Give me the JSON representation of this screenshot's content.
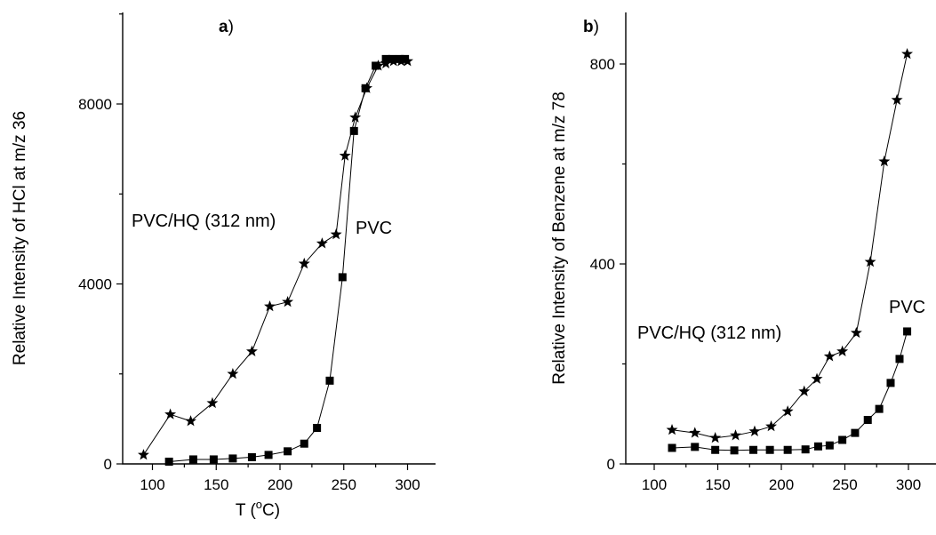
{
  "chart_data": [
    {
      "panel": "a",
      "type": "line",
      "title": "",
      "xlabel": "T (°C)",
      "ylabel": "Relative Intensity of HCl at m/z 36",
      "xlim": [
        70,
        320
      ],
      "ylim": [
        0,
        9900
      ],
      "xticks": [
        100,
        150,
        200,
        250,
        300
      ],
      "yticks": [
        0,
        4000,
        8000
      ],
      "series": [
        {
          "name": "PVC/HQ (312 nm)",
          "marker": "star",
          "x": [
            93,
            114,
            130,
            147,
            163,
            178,
            192,
            206,
            219,
            233,
            244,
            251,
            259,
            268,
            277,
            283,
            289,
            295,
            300
          ],
          "y": [
            200,
            1100,
            950,
            1350,
            2000,
            2500,
            3500,
            3600,
            4450,
            4900,
            5100,
            6850,
            7700,
            8350,
            8850,
            8900,
            8950,
            8950,
            8950
          ]
        },
        {
          "name": "PVC",
          "marker": "square",
          "x": [
            113,
            132,
            148,
            163,
            178,
            191,
            206,
            219,
            229,
            239,
            249,
            258,
            267,
            275,
            283,
            288,
            294,
            298
          ],
          "y": [
            50,
            100,
            100,
            120,
            150,
            200,
            280,
            450,
            800,
            1850,
            4150,
            7400,
            8350,
            8850,
            9000,
            9000,
            9000,
            9000
          ]
        }
      ]
    },
    {
      "panel": "b",
      "type": "line",
      "title": "",
      "xlabel": "",
      "ylabel": "Relative Intensity of Benzene at m/z 78",
      "xlim": [
        70,
        320
      ],
      "ylim": [
        0,
        900
      ],
      "xticks": [
        100,
        150,
        200,
        250,
        300
      ],
      "yticks": [
        0,
        400,
        800
      ],
      "series": [
        {
          "name": "PVC/HQ (312 nm)",
          "marker": "star",
          "x": [
            114,
            132,
            148,
            164,
            179,
            192,
            205,
            218,
            228,
            238,
            248,
            259,
            270,
            281,
            291,
            299
          ],
          "y": [
            68,
            62,
            52,
            57,
            65,
            75,
            105,
            145,
            170,
            215,
            225,
            262,
            404,
            605,
            728,
            820
          ]
        },
        {
          "name": "PVC",
          "marker": "square",
          "x": [
            114,
            132,
            148,
            163,
            178,
            191,
            205,
            219,
            229,
            238,
            248,
            258,
            268,
            277,
            286,
            293,
            299
          ],
          "y": [
            32,
            34,
            28,
            27,
            28,
            28,
            28,
            29,
            35,
            37,
            48,
            62,
            88,
            110,
            162,
            210,
            265
          ]
        }
      ]
    }
  ],
  "annotations": {
    "a_panel_letter": "a",
    "a_panel_paren": ")",
    "b_panel_letter": "b",
    "b_panel_paren": ")",
    "a_pvc_hq": "PVC/HQ (312 nm)",
    "a_pvc": "PVC",
    "b_pvc_hq": "PVC/HQ (312 nm)",
    "b_pvc": "PVC"
  }
}
